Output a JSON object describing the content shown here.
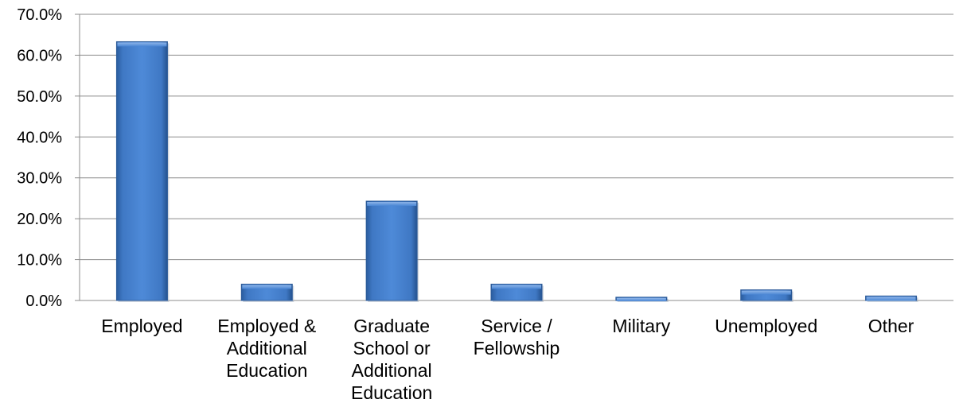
{
  "chart_data": {
    "type": "bar",
    "title": "",
    "xlabel": "",
    "ylabel": "",
    "ylim": [
      0,
      70
    ],
    "y_tick_step": 10,
    "y_tick_labels": [
      "0.0%",
      "10.0%",
      "20.0%",
      "30.0%",
      "40.0%",
      "50.0%",
      "60.0%",
      "70.0%"
    ],
    "grid": true,
    "legend": "none",
    "bar_color": "#3F78C4",
    "categories": [
      [
        "Employed"
      ],
      [
        "Employed &",
        "Additional",
        "Education"
      ],
      [
        "Graduate",
        "School or",
        "Additional",
        "Education"
      ],
      [
        "Service /",
        "Fellowship"
      ],
      [
        "Military"
      ],
      [
        "Unemployed"
      ],
      [
        "Other"
      ]
    ],
    "values": [
      63.3,
      4.0,
      24.3,
      4.0,
      0.8,
      2.6,
      1.1
    ]
  }
}
